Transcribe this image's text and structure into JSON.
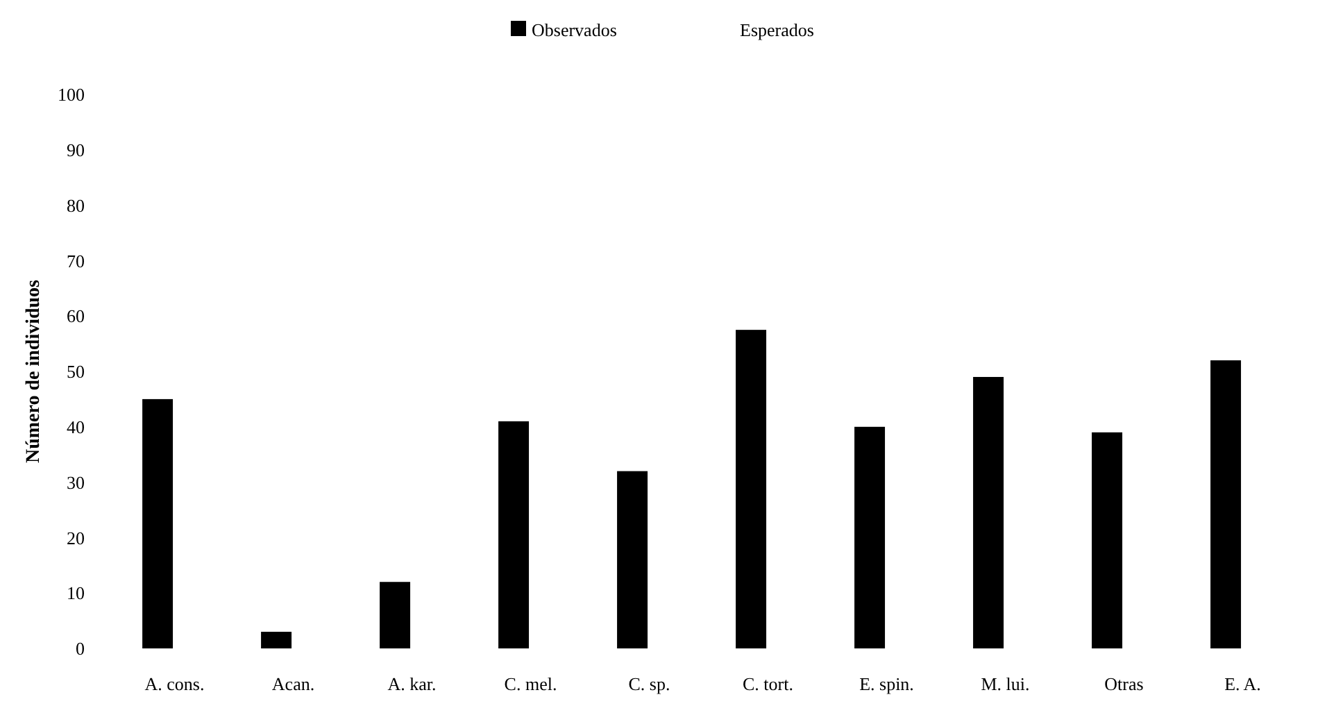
{
  "chart_data": {
    "type": "bar",
    "ylabel": "Número de individuos",
    "categories": [
      "A. cons.",
      "Acan.",
      "A. kar.",
      "C. mel.",
      "C. sp.",
      "C. tort.",
      "E. spin.",
      "M. lui.",
      "Otras",
      "E. A."
    ],
    "series": [
      {
        "name": "Observados",
        "color": "#000000",
        "values": [
          45,
          3,
          12,
          41,
          32,
          57.5,
          40,
          49,
          39,
          52
        ]
      },
      {
        "name": "Esperados",
        "values": [
          null,
          null,
          null,
          null,
          null,
          null,
          null,
          null,
          null,
          null
        ]
      }
    ],
    "ylim": [
      0,
      100
    ],
    "yticks": [
      0,
      10,
      20,
      30,
      40,
      50,
      60,
      70,
      80,
      90,
      100
    ],
    "legend": "top"
  }
}
